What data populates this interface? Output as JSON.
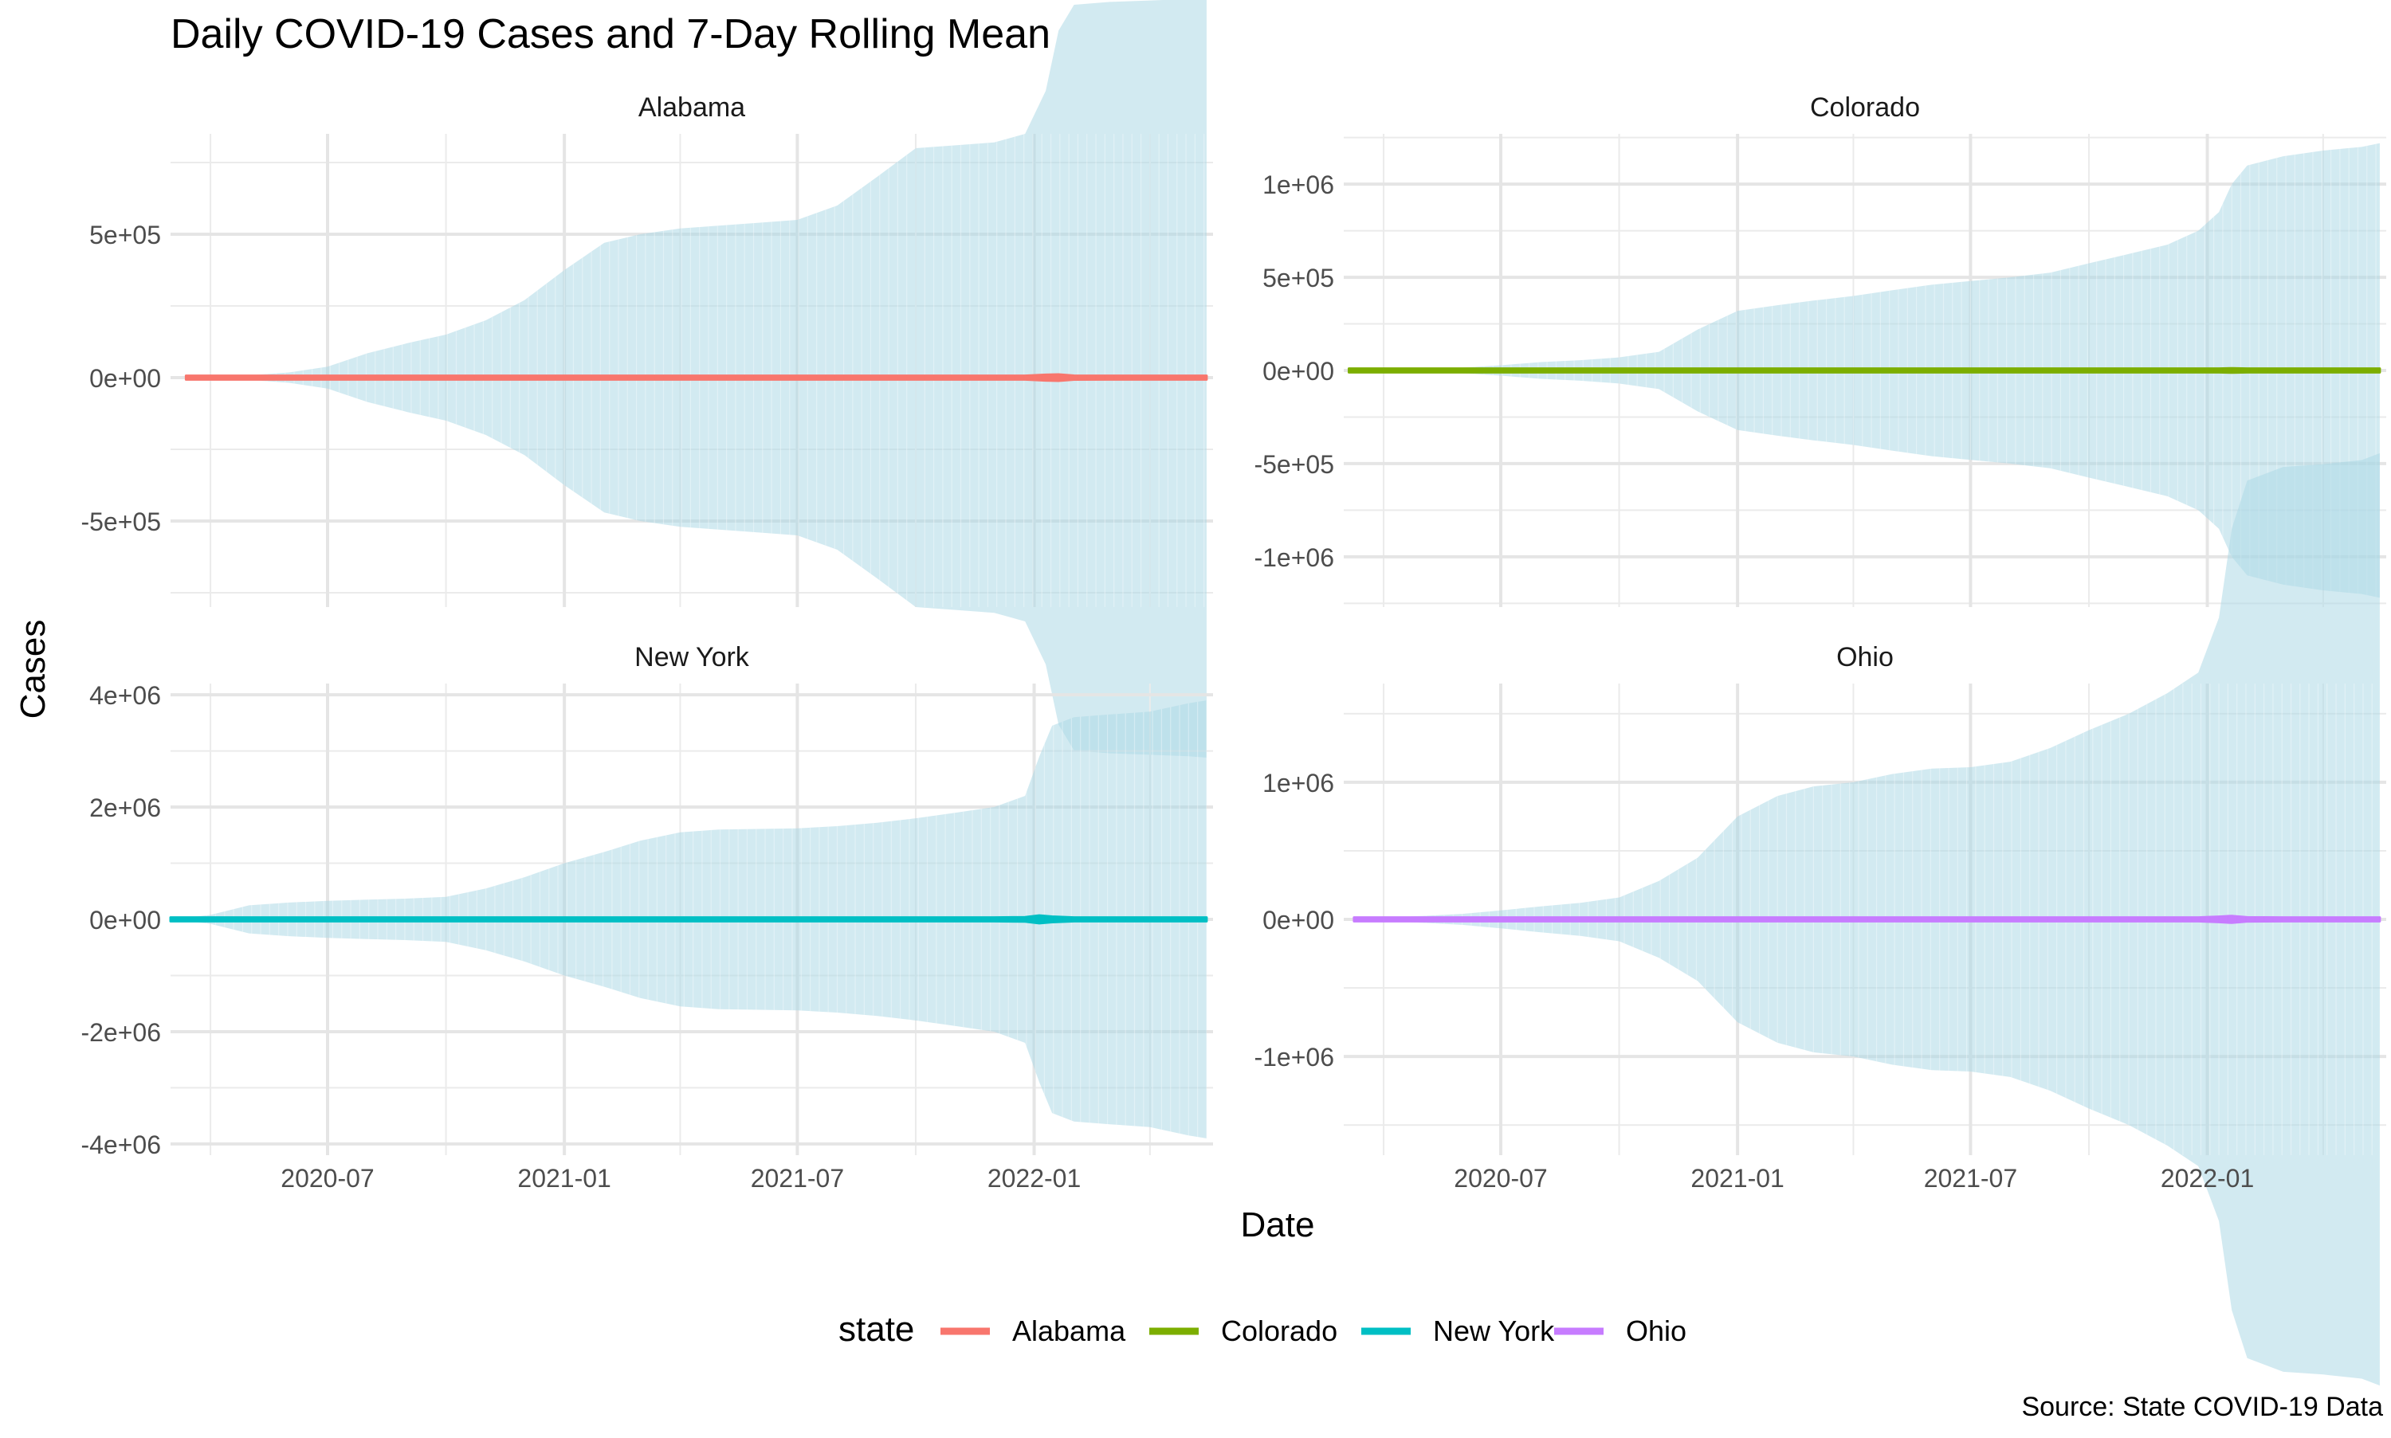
{
  "chart_data": {
    "type": "area",
    "title": "Daily COVID-19 Cases and 7-Day Rolling Mean",
    "xlabel": "Date",
    "ylabel": "Cases",
    "caption": "Source: State COVID-19 Data",
    "legend": {
      "title": "state",
      "position": "bottom",
      "entries": [
        {
          "name": "Alabama",
          "color": "#F8766D"
        },
        {
          "name": "Colorado",
          "color": "#7CAE00"
        },
        {
          "name": "New York",
          "color": "#00BFC4"
        },
        {
          "name": "Ohio",
          "color": "#C77CFF"
        }
      ]
    },
    "band_color": "#ADD8E6",
    "grid": true,
    "x_range": [
      "2020-03-01",
      "2022-05-20"
    ],
    "x_ticks": [
      "2020-07-01",
      "2021-01-01",
      "2021-07-01",
      "2022-01-01"
    ],
    "x_tick_labels": [
      "2020-07",
      "2021-01",
      "2021-07",
      "2022-01"
    ],
    "panels": [
      {
        "state": "Alabama",
        "color": "#F8766D",
        "ylim": [
          -800000,
          850000
        ],
        "y_ticks": [
          -500000,
          0,
          500000
        ],
        "y_tick_labels": [
          "-5e+05",
          "0e+00",
          "5e+05"
        ],
        "x": [
          "2020-03-13",
          "2020-05-01",
          "2020-06-01",
          "2020-07-01",
          "2020-08-01",
          "2020-09-01",
          "2020-10-01",
          "2020-11-01",
          "2020-12-01",
          "2021-01-01",
          "2021-02-01",
          "2021-03-01",
          "2021-04-01",
          "2021-05-01",
          "2021-06-01",
          "2021-07-01",
          "2021-08-01",
          "2021-09-01",
          "2021-10-01",
          "2021-11-01",
          "2021-12-01",
          "2021-12-25",
          "2022-01-10",
          "2022-01-20",
          "2022-02-01",
          "2022-03-01",
          "2022-04-01",
          "2022-05-01",
          "2022-05-15"
        ],
        "cumulative_cases": [
          1000,
          8000,
          18000,
          38000,
          85000,
          120000,
          150000,
          200000,
          270000,
          375000,
          470000,
          500000,
          520000,
          530000,
          540000,
          550000,
          600000,
          700000,
          800000,
          810000,
          820000,
          850000,
          1000000,
          1210000,
          1300000,
          1310000,
          1315000,
          1320000,
          1325000
        ],
        "rolling_mean": [
          0,
          50,
          300,
          800,
          1200,
          1000,
          1000,
          1500,
          3000,
          3500,
          2500,
          1000,
          500,
          300,
          200,
          1000,
          3000,
          3500,
          1500,
          800,
          1000,
          5000,
          10000,
          11000,
          7000,
          2000,
          800,
          500,
          500
        ]
      },
      {
        "state": "Colorado",
        "color": "#7CAE00",
        "ylim": [
          -1270000,
          1270000
        ],
        "y_ticks": [
          -1000000,
          -500000,
          0,
          500000,
          1000000
        ],
        "y_tick_labels": [
          "-1e+06",
          "-5e+05",
          "0e+00",
          "5e+05",
          "1e+06"
        ],
        "x": [
          "2020-03-05",
          "2020-05-01",
          "2020-06-01",
          "2020-07-01",
          "2020-08-01",
          "2020-09-01",
          "2020-10-01",
          "2020-11-01",
          "2020-12-01",
          "2021-01-01",
          "2021-02-01",
          "2021-03-01",
          "2021-04-01",
          "2021-05-01",
          "2021-06-01",
          "2021-07-01",
          "2021-08-01",
          "2021-09-01",
          "2021-10-01",
          "2021-11-01",
          "2021-12-01",
          "2021-12-25",
          "2022-01-10",
          "2022-01-20",
          "2022-02-01",
          "2022-03-01",
          "2022-04-01",
          "2022-05-01",
          "2022-05-15"
        ],
        "cumulative_cases": [
          1000,
          8000,
          15000,
          28000,
          45000,
          55000,
          70000,
          100000,
          220000,
          320000,
          350000,
          375000,
          400000,
          430000,
          460000,
          480000,
          500000,
          525000,
          575000,
          625000,
          675000,
          750000,
          850000,
          1000000,
          1100000,
          1150000,
          1180000,
          1200000,
          1220000
        ],
        "rolling_mean": [
          0,
          300,
          200,
          400,
          300,
          400,
          600,
          2500,
          4500,
          3000,
          1500,
          1000,
          1200,
          1500,
          700,
          500,
          1000,
          1500,
          2000,
          3000,
          4500,
          8000,
          10000,
          12000,
          9000,
          3000,
          1500,
          1000,
          1000
        ]
      },
      {
        "state": "New York",
        "color": "#00BFC4",
        "ylim": [
          -4200000,
          4200000
        ],
        "y_ticks": [
          -4000000,
          -2000000,
          0,
          2000000,
          4000000
        ],
        "y_tick_labels": [
          "-4e+06",
          "-2e+06",
          "0e+00",
          "2e+06",
          "4e+06"
        ],
        "x": [
          "2020-03-01",
          "2020-04-01",
          "2020-05-01",
          "2020-06-01",
          "2020-07-01",
          "2020-08-01",
          "2020-09-01",
          "2020-10-01",
          "2020-11-01",
          "2020-12-01",
          "2021-01-01",
          "2021-02-01",
          "2021-03-01",
          "2021-04-01",
          "2021-05-01",
          "2021-06-01",
          "2021-07-01",
          "2021-08-01",
          "2021-09-01",
          "2021-10-01",
          "2021-11-01",
          "2021-12-01",
          "2021-12-25",
          "2022-01-05",
          "2022-01-15",
          "2022-02-01",
          "2022-03-01",
          "2022-04-01",
          "2022-05-01",
          "2022-05-15"
        ],
        "cumulative_cases": [
          0,
          80000,
          250000,
          300000,
          330000,
          350000,
          370000,
          400000,
          550000,
          750000,
          1000000,
          1200000,
          1400000,
          1550000,
          1600000,
          1610000,
          1620000,
          1660000,
          1720000,
          1800000,
          1900000,
          2000000,
          2200000,
          2900000,
          3450000,
          3600000,
          3650000,
          3700000,
          3850000,
          3900000
        ],
        "rolling_mean": [
          0,
          10000,
          3000,
          1000,
          800,
          700,
          1000,
          1500,
          4000,
          10000,
          13000,
          8000,
          7000,
          6000,
          3000,
          1000,
          700,
          3000,
          5000,
          5000,
          5000,
          10000,
          40000,
          70000,
          50000,
          10000,
          5000,
          8000,
          15000,
          20000
        ]
      },
      {
        "state": "Ohio",
        "color": "#C77CFF",
        "ylim": [
          -1720000,
          1720000
        ],
        "y_ticks": [
          -1000000,
          0,
          1000000
        ],
        "y_tick_labels": [
          "-1e+06",
          "0e+00",
          "1e+06"
        ],
        "x": [
          "2020-03-09",
          "2020-05-01",
          "2020-06-01",
          "2020-07-01",
          "2020-08-01",
          "2020-09-01",
          "2020-10-01",
          "2020-11-01",
          "2020-12-01",
          "2021-01-01",
          "2021-02-01",
          "2021-03-01",
          "2021-04-01",
          "2021-05-01",
          "2021-06-01",
          "2021-07-01",
          "2021-08-01",
          "2021-09-01",
          "2021-10-01",
          "2021-11-01",
          "2021-12-01",
          "2021-12-25",
          "2022-01-10",
          "2022-01-20",
          "2022-02-01",
          "2022-03-01",
          "2022-04-01",
          "2022-05-01",
          "2022-05-15"
        ],
        "cumulative_cases": [
          1000,
          25000,
          40000,
          65000,
          95000,
          120000,
          160000,
          280000,
          450000,
          750000,
          900000,
          970000,
          1000000,
          1060000,
          1100000,
          1110000,
          1150000,
          1250000,
          1380000,
          1500000,
          1650000,
          1800000,
          2200000,
          2850000,
          3200000,
          3300000,
          3320000,
          3350000,
          3400000
        ],
        "rolling_mean": [
          0,
          500,
          500,
          1000,
          1200,
          1000,
          1200,
          6000,
          10000,
          8000,
          4000,
          1800,
          1500,
          1500,
          700,
          500,
          1500,
          4500,
          5000,
          4000,
          7000,
          12000,
          20000,
          25000,
          15000,
          5000,
          2000,
          1500,
          1500
        ]
      }
    ]
  }
}
